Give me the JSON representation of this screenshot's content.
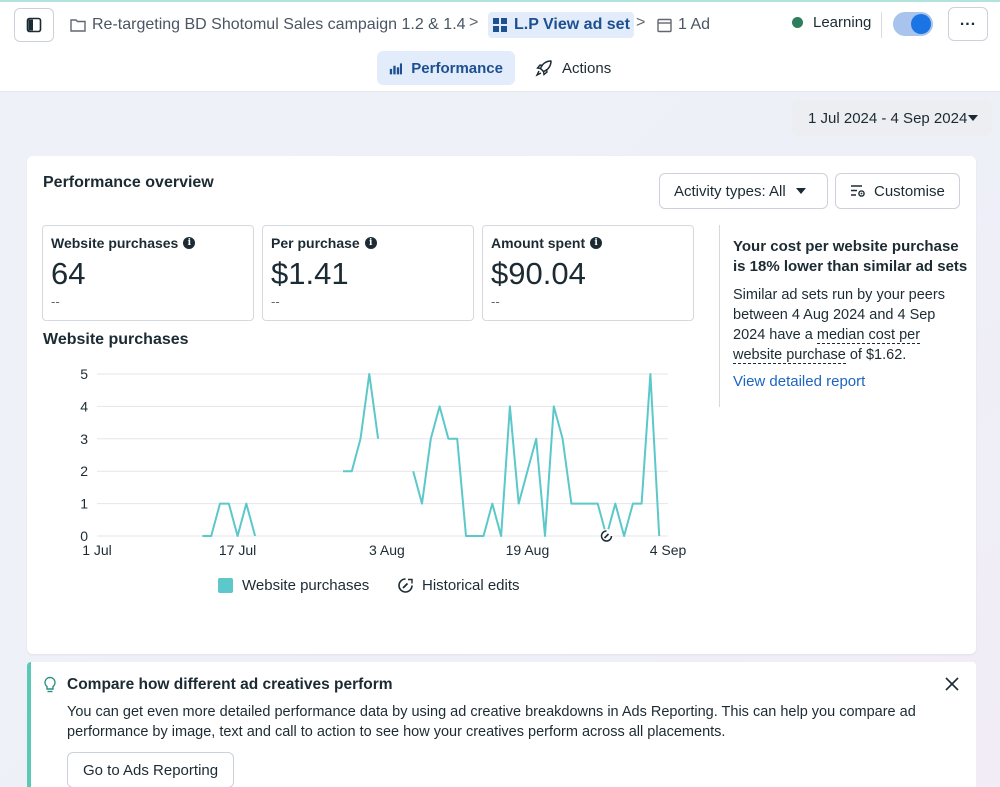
{
  "header": {
    "campaign": "Re-targeting BD Shotomul Sales campaign 1.2 & 1.4",
    "adset": "L.P View ad set",
    "ad": "1 Ad",
    "status": "Learning",
    "chevron": ">",
    "more": "..."
  },
  "tabs": {
    "performance": "Performance",
    "actions": "Actions"
  },
  "daterange": "1 Jul 2024 - 4 Sep 2024",
  "overview": {
    "title": "Performance overview",
    "activity": "Activity types: All",
    "customise": "Customise",
    "metrics": [
      {
        "label": "Website purchases",
        "value": "64",
        "delta": "--"
      },
      {
        "label": "Per purchase",
        "value": "$1.41",
        "delta": "--"
      },
      {
        "label": "Amount spent",
        "value": "$90.04",
        "delta": "--"
      }
    ],
    "chart_title": "Website purchases"
  },
  "chart_data": {
    "type": "line",
    "title": "Website purchases",
    "xlabel": "",
    "ylabel": "",
    "ylim": [
      0,
      5
    ],
    "yticks": [
      "0",
      "1",
      "2",
      "3",
      "4",
      "5"
    ],
    "xticks": [
      "1 Jul",
      "17 Jul",
      "3 Aug",
      "19 Aug",
      "4 Sep"
    ],
    "xtick_days": [
      0,
      16,
      33,
      49,
      65
    ],
    "color": "#5cc8c9",
    "series": [
      {
        "name": "Website purchases",
        "segments": [
          [
            [
              12,
              0
            ],
            [
              13,
              0
            ],
            [
              14,
              1
            ],
            [
              15,
              1
            ],
            [
              16,
              0
            ],
            [
              17,
              1
            ],
            [
              18,
              0
            ]
          ],
          [
            [
              28,
              2
            ],
            [
              29,
              2
            ],
            [
              30,
              3
            ],
            [
              31,
              5
            ],
            [
              32,
              3
            ]
          ],
          [
            [
              36,
              2
            ],
            [
              37,
              1
            ],
            [
              38,
              3
            ],
            [
              39,
              4
            ],
            [
              40,
              3
            ],
            [
              41,
              3
            ],
            [
              42,
              0
            ],
            [
              43,
              0
            ],
            [
              44,
              0
            ],
            [
              45,
              1
            ],
            [
              46,
              0
            ],
            [
              47,
              4
            ],
            [
              48,
              1
            ],
            [
              49,
              2
            ],
            [
              50,
              3
            ],
            [
              51,
              0
            ],
            [
              52,
              4
            ],
            [
              53,
              3
            ],
            [
              54,
              1
            ],
            [
              55,
              1
            ],
            [
              56,
              1
            ],
            [
              57,
              1
            ],
            [
              58,
              0
            ],
            [
              59,
              1
            ],
            [
              60,
              0
            ],
            [
              61,
              1
            ],
            [
              62,
              1
            ],
            [
              63,
              5
            ],
            [
              64,
              0
            ]
          ]
        ]
      }
    ],
    "historical_edits_day": 58,
    "legend": [
      "Website purchases",
      "Historical edits"
    ]
  },
  "insight": {
    "headline": "Your cost per website purchase is 18% lower than similar ad sets",
    "body_pre": "Similar ad sets run by your peers between 4 Aug 2024 and 4 Sep 2024 have a ",
    "body_term": "median cost per website purchase",
    "body_post": " of $1.62.",
    "link": "View detailed report"
  },
  "banner": {
    "title": "Compare how different ad creatives perform",
    "text": "You can get even more detailed performance data by using ad creative breakdowns in Ads Reporting. This can help you compare ad performance by image, text and call to action to see how your creatives perform across all placements.",
    "button": "Go to Ads Reporting"
  }
}
